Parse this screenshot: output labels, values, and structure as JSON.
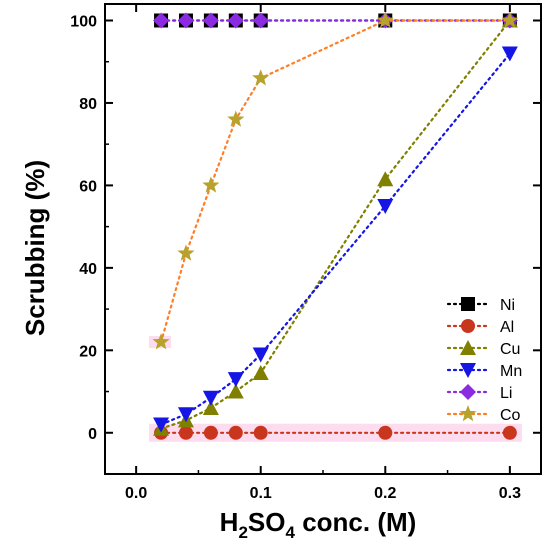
{
  "chart_data": {
    "type": "line",
    "xlabel_main": "H",
    "xlabel_sub1": "2",
    "xlabel_mid": "SO",
    "xlabel_sub2": "4",
    "xlabel_tail": " conc. (M)",
    "ylabel": "Scrubbing (%)",
    "xlim": [
      -0.025,
      0.325
    ],
    "ylim": [
      -10,
      104
    ],
    "xticks": [
      0.0,
      0.1,
      0.2,
      0.3
    ],
    "xtick_labels": [
      "0.0",
      "0.1",
      "0.2",
      "0.3"
    ],
    "yticks": [
      0,
      20,
      40,
      60,
      80,
      100
    ],
    "ytick_labels": [
      "0",
      "20",
      "40",
      "60",
      "80",
      "100"
    ],
    "grid": false,
    "legend_position": "right",
    "line_style": "dotted",
    "series": [
      {
        "name": "Ni",
        "marker": "square",
        "color": "#000000",
        "x": [
          0.02,
          0.04,
          0.06,
          0.08,
          0.1,
          0.2,
          0.3
        ],
        "y": [
          100,
          100,
          100,
          100,
          100,
          100,
          100
        ]
      },
      {
        "name": "Al",
        "marker": "circle",
        "color": "#c8361d",
        "x": [
          0.02,
          0.04,
          0.06,
          0.08,
          0.1,
          0.2,
          0.3
        ],
        "y": [
          0,
          0,
          0,
          0,
          0,
          0,
          0
        ]
      },
      {
        "name": "Cu",
        "marker": "triangle-up",
        "color": "#7f7f00",
        "x": [
          0.02,
          0.04,
          0.06,
          0.08,
          0.1,
          0.2,
          0.3
        ],
        "y": [
          1,
          3,
          6,
          10,
          14.5,
          61.5,
          100
        ]
      },
      {
        "name": "Mn",
        "marker": "triangle-down",
        "color": "#1515e6",
        "x": [
          0.02,
          0.04,
          0.06,
          0.08,
          0.1,
          0.2,
          0.3
        ],
        "y": [
          2,
          4.5,
          8.5,
          13,
          19,
          55,
          92
        ]
      },
      {
        "name": "Li",
        "marker": "diamond",
        "color": "#8a2be2",
        "x": [
          0.02,
          0.04,
          0.06,
          0.08,
          0.1,
          0.2,
          0.3
        ],
        "y": [
          100,
          100,
          100,
          100,
          100,
          100,
          100
        ]
      },
      {
        "name": "Co",
        "marker": "star",
        "color": "#ff7f27",
        "marker_color": "#b8a22d",
        "x": [
          0.02,
          0.04,
          0.06,
          0.08,
          0.1,
          0.2,
          0.3
        ],
        "y": [
          22,
          43.5,
          60,
          76,
          86,
          100,
          100
        ]
      }
    ]
  }
}
